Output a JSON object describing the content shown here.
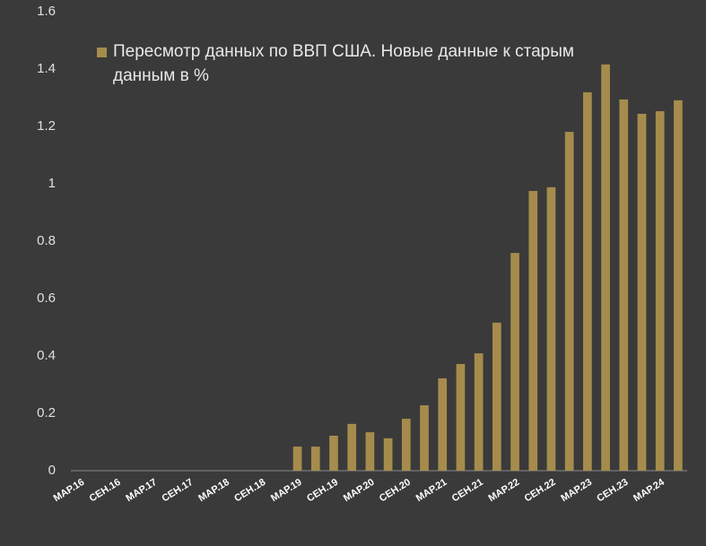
{
  "chart_data": {
    "type": "bar",
    "series": [
      {
        "name": "Пересмотр данных по ВВП США. Новые данные к старым данным в %",
        "color": "#a68c4c",
        "values": [
          0,
          0,
          0,
          0,
          0,
          0,
          0,
          0,
          0,
          0,
          0,
          0,
          0.084,
          0.084,
          0.122,
          0.163,
          0.134,
          0.113,
          0.181,
          0.228,
          0.322,
          0.372,
          0.409,
          0.516,
          0.759,
          0.975,
          0.988,
          1.181,
          1.319,
          1.416,
          1.294,
          1.244,
          1.253,
          1.291
        ]
      }
    ],
    "categories": [
      "МАР.16",
      null,
      "СЕН.16",
      null,
      "МАР.17",
      null,
      "СЕН.17",
      null,
      "МАР.18",
      null,
      "СЕН.18",
      null,
      "МАР.19",
      null,
      "СЕН.19",
      null,
      "МАР.20",
      null,
      "СЕН.20",
      null,
      "МАР.21",
      null,
      "СЕН.21",
      null,
      "МАР.22",
      null,
      "СЕН.22",
      null,
      "МАР.23",
      null,
      "СЕН.23",
      null,
      "МАР.24",
      null
    ],
    "ylim": [
      0,
      1.6
    ],
    "yticks": [
      0,
      0.2,
      0.4,
      0.6,
      0.8,
      1,
      1.2,
      1.4,
      1.6
    ],
    "grid": false
  }
}
